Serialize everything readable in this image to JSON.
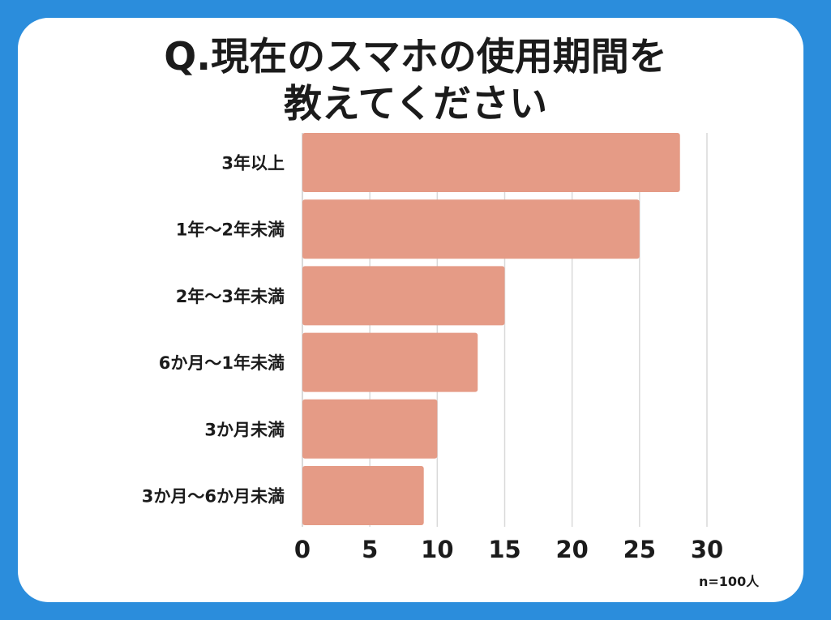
{
  "title": {
    "line1": "Q.現在のスマホの使用期間を",
    "line2": "教えてください"
  },
  "note": "n=100人",
  "colors": {
    "background": "#2b8ddc",
    "card": "#ffffff",
    "bar": "#e59b86",
    "grid": "#d9d9d9",
    "text": "#1b1b1b"
  },
  "chart_data": {
    "type": "bar",
    "orientation": "horizontal",
    "categories": [
      "3年以上",
      "1年〜2年未満",
      "2年〜3年未満",
      "6か月〜1年未満",
      "3か月未満",
      "3か月〜6か月未満"
    ],
    "values": [
      28,
      25,
      15,
      13,
      10,
      9
    ],
    "xlim": [
      0,
      30
    ],
    "xticks": [
      0,
      5,
      10,
      15,
      20,
      25,
      30
    ],
    "xlabel": "",
    "ylabel": "",
    "grid": true,
    "legend": "none"
  }
}
